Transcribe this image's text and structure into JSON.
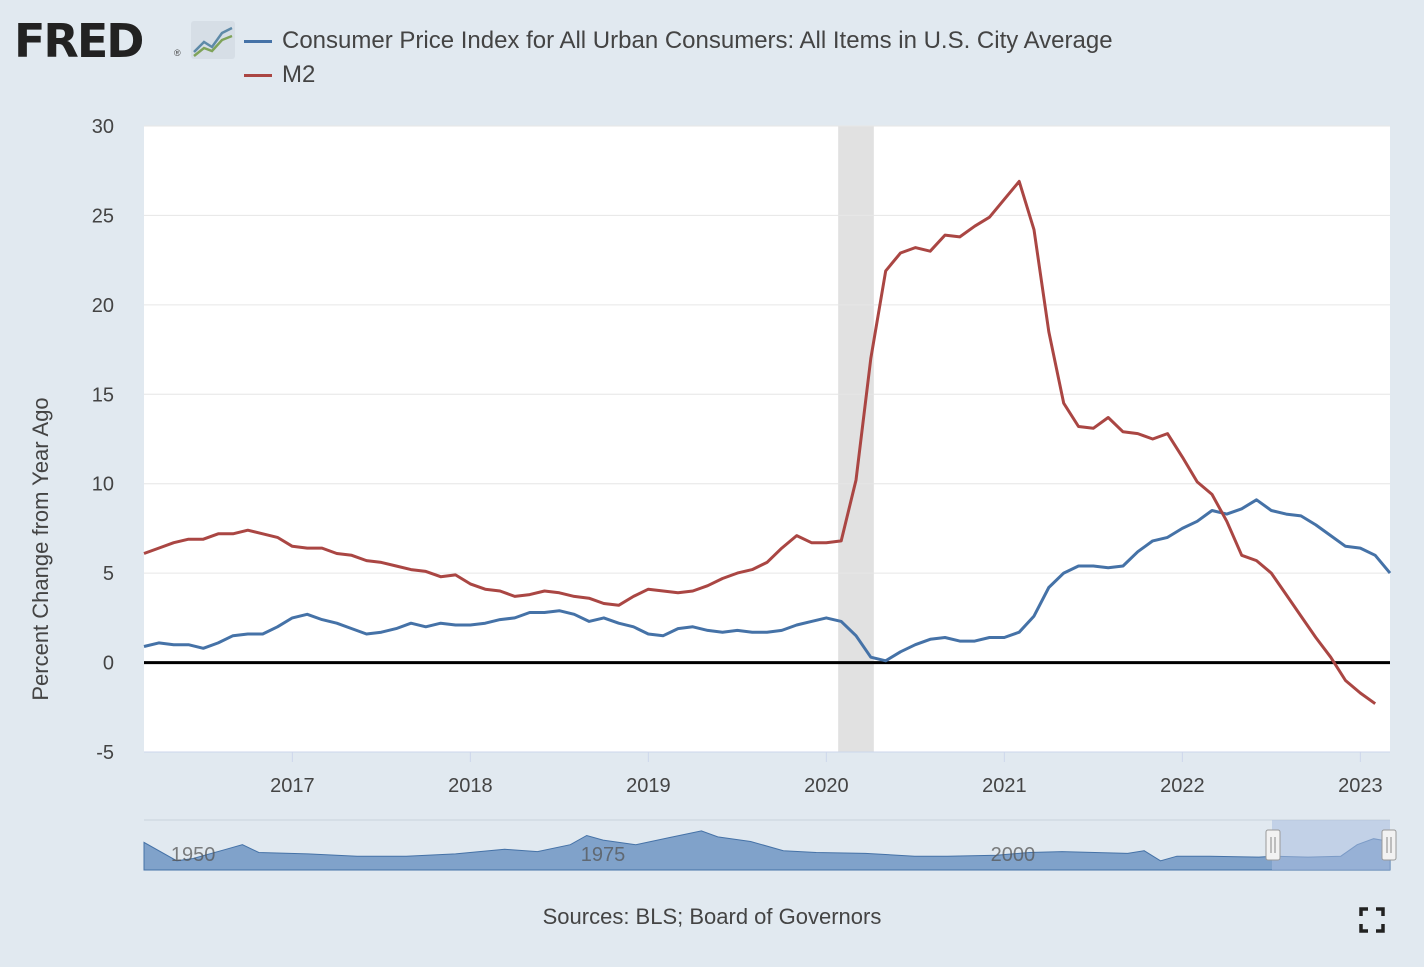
{
  "header": {
    "logo_text": "FRED"
  },
  "legend": [
    {
      "name": "Consumer Price Index for All Urban Consumers: All Items in U.S. City Average",
      "color": "#4572a7"
    },
    {
      "name": "M2",
      "color": "#aa4643"
    }
  ],
  "chart_data": {
    "type": "line",
    "ylabel": "Percent Change from Year Ago",
    "ylim": [
      -5,
      30
    ],
    "y_ticks": [
      "-5",
      "0",
      "5",
      "10",
      "15",
      "20",
      "25",
      "30"
    ],
    "x_ticks": [
      "2017",
      "2018",
      "2019",
      "2020",
      "2021",
      "2022",
      "2023"
    ],
    "grid": "horizontal",
    "recession": {
      "start": "2020-02",
      "end": "2020-04"
    },
    "x_start": "2016-03",
    "series": [
      {
        "name": "Consumer Price Index for All Urban Consumers: All Items in U.S. City Average",
        "color": "#4572a7",
        "values": [
          0.9,
          1.1,
          1.0,
          1.0,
          0.8,
          1.1,
          1.5,
          1.6,
          1.6,
          2.0,
          2.5,
          2.7,
          2.4,
          2.2,
          1.9,
          1.6,
          1.7,
          1.9,
          2.2,
          2.0,
          2.2,
          2.1,
          2.1,
          2.2,
          2.4,
          2.5,
          2.8,
          2.8,
          2.9,
          2.7,
          2.3,
          2.5,
          2.2,
          2.0,
          1.6,
          1.5,
          1.9,
          2.0,
          1.8,
          1.7,
          1.8,
          1.7,
          1.7,
          1.8,
          2.1,
          2.3,
          2.5,
          2.3,
          1.5,
          0.3,
          0.1,
          0.6,
          1.0,
          1.3,
          1.4,
          1.2,
          1.2,
          1.4,
          1.4,
          1.7,
          2.6,
          4.2,
          5.0,
          5.4,
          5.4,
          5.3,
          5.4,
          6.2,
          6.8,
          7.0,
          7.5,
          7.9,
          8.5,
          8.3,
          8.6,
          9.1,
          8.5,
          8.3,
          8.2,
          7.7,
          7.1,
          6.5,
          6.4,
          6.0,
          5.0
        ]
      },
      {
        "name": "M2",
        "color": "#aa4643",
        "values": [
          6.1,
          6.4,
          6.7,
          6.9,
          6.9,
          7.2,
          7.2,
          7.4,
          7.2,
          7.0,
          6.5,
          6.4,
          6.4,
          6.1,
          6.0,
          5.7,
          5.6,
          5.4,
          5.2,
          5.1,
          4.8,
          4.9,
          4.4,
          4.1,
          4.0,
          3.7,
          3.8,
          4.0,
          3.9,
          3.7,
          3.6,
          3.3,
          3.2,
          3.7,
          4.1,
          4.0,
          3.9,
          4.0,
          4.3,
          4.7,
          5.0,
          5.2,
          5.6,
          6.4,
          7.1,
          6.7,
          6.7,
          6.8,
          10.2,
          17.0,
          21.9,
          22.9,
          23.2,
          23.0,
          23.9,
          23.8,
          24.4,
          24.9,
          25.9,
          26.9,
          24.2,
          18.5,
          14.5,
          13.2,
          13.1,
          13.7,
          12.9,
          12.8,
          12.5,
          12.8,
          11.5,
          10.1,
          9.4,
          7.9,
          6.0,
          5.7,
          5.0,
          3.8,
          2.6,
          1.4,
          0.3,
          -1.0,
          -1.7,
          -2.3
        ]
      }
    ],
    "navigator_x_ticks": [
      "1950",
      "1975",
      "2000"
    ]
  },
  "footer": {
    "source": "Sources: BLS; Board of Governors"
  },
  "icons": {
    "fullscreen": "fullscreen-icon",
    "logo_graph": "chart-line-icon"
  }
}
